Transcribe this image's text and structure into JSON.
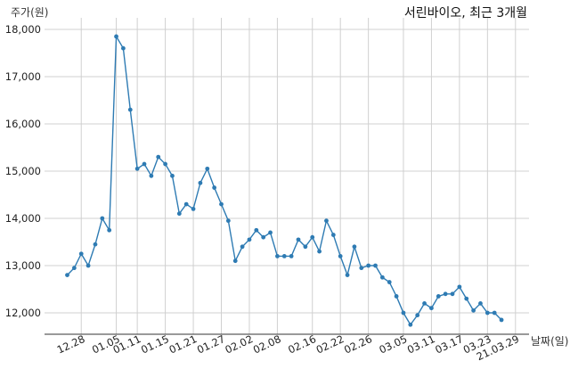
{
  "chart_data": {
    "type": "line",
    "title": "서린바이오, 최근 3개월",
    "xlabel": "날짜(일)",
    "ylabel": "주가(원)",
    "ylim": [
      11450,
      18150
    ],
    "yticks": [
      12000,
      13000,
      14000,
      15000,
      16000,
      17000,
      18000
    ],
    "ytick_labels": [
      "12,000",
      "13,000",
      "14,000",
      "15,000",
      "16,000",
      "17,000",
      "18,000"
    ],
    "xtick_labels": [
      "12.28",
      "01.05",
      "01.11",
      "01.15",
      "01.21",
      "01.27",
      "02.02",
      "02.08",
      "02.16",
      "02.22",
      "02.26",
      "03.05",
      "03.11",
      "03.17",
      "03.23",
      "21.03.29"
    ],
    "xtick_indices": [
      2,
      7,
      10,
      14,
      18,
      22,
      26,
      30,
      35,
      39,
      43,
      48,
      52,
      56,
      60,
      64
    ],
    "grid": true,
    "color": "#2e7bb3",
    "series": [
      {
        "values": [
          12800,
          12950,
          13250,
          13000,
          13450,
          14000,
          13750,
          17850,
          17600,
          16300,
          15050,
          15150,
          14900,
          15300,
          15150,
          14900,
          14100,
          14300,
          14200,
          14750,
          15050,
          14650,
          14300,
          13950,
          13100,
          13400,
          13550,
          13750,
          13600,
          13700,
          13200,
          13200,
          13200,
          13550,
          13400,
          13600,
          13300,
          13950,
          13650,
          13200,
          12800,
          13400,
          12950,
          13000,
          13000,
          12750,
          12650,
          12350,
          12000,
          11750,
          11950,
          12200,
          12100,
          12350,
          12400,
          12400,
          12550,
          12300,
          12050,
          12200,
          12000,
          12000,
          11850
        ]
      }
    ]
  }
}
